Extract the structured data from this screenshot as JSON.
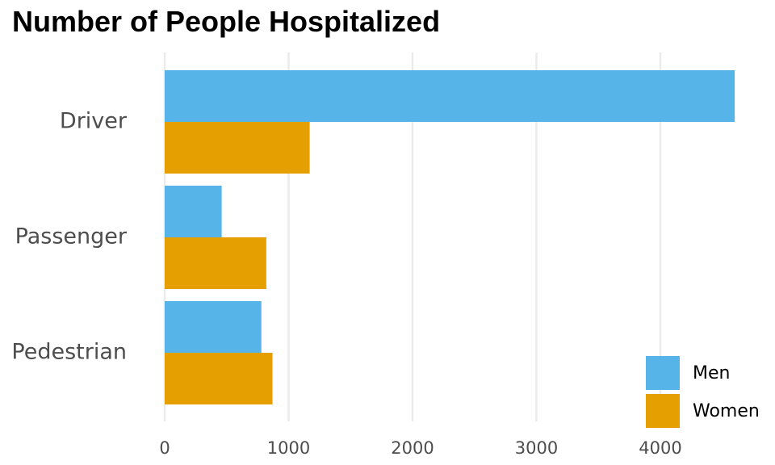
{
  "chart_data": {
    "type": "bar",
    "orientation": "horizontal",
    "title": "Number of People Hospitalized",
    "xlabel": "",
    "ylabel": "",
    "categories": [
      "Driver",
      "Passenger",
      "Pedestrian"
    ],
    "series": [
      {
        "name": "Men",
        "color": "#56B4E9",
        "values": [
          4600,
          460,
          780
        ]
      },
      {
        "name": "Women",
        "color": "#E69F00",
        "values": [
          1170,
          820,
          870
        ]
      }
    ],
    "xlim": [
      0,
      4650
    ],
    "xticks": [
      0,
      1000,
      2000,
      3000,
      4000
    ],
    "grid": "vertical",
    "legend_position": "bottom-right"
  }
}
